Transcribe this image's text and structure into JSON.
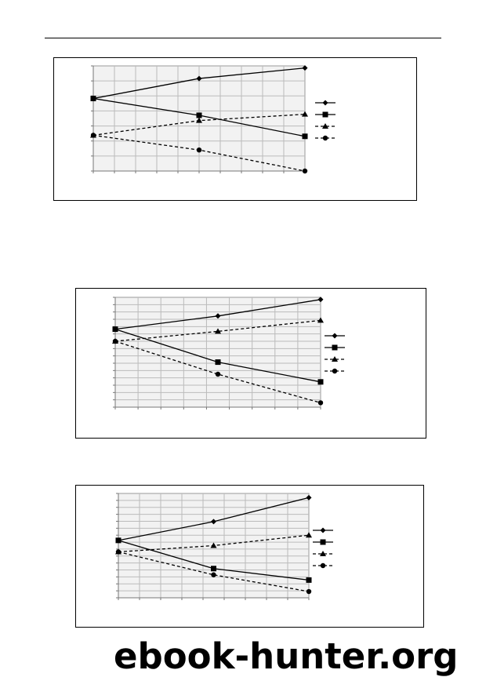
{
  "watermark": {
    "text": "ebook-hunter.org"
  },
  "chart_data": [
    {
      "type": "line",
      "x": [
        0,
        1,
        2
      ],
      "ylim": [
        0,
        10
      ],
      "grid": true,
      "legend_position": "right",
      "series": [
        {
          "marker": "diamond",
          "dash": "solid",
          "values": [
            6.9,
            8.8,
            9.8
          ]
        },
        {
          "marker": "square",
          "dash": "solid",
          "values": [
            6.9,
            5.3,
            3.3
          ]
        },
        {
          "marker": "triangle",
          "dash": "dashed",
          "values": [
            3.4,
            4.8,
            5.4
          ]
        },
        {
          "marker": "circle",
          "dash": "dashed",
          "values": [
            3.4,
            2.0,
            0.0
          ]
        }
      ]
    },
    {
      "type": "line",
      "x": [
        0,
        1,
        2
      ],
      "ylim": [
        0,
        10
      ],
      "grid": true,
      "legend_position": "right",
      "series": [
        {
          "marker": "diamond",
          "dash": "solid",
          "values": [
            7.1,
            8.3,
            9.8
          ]
        },
        {
          "marker": "square",
          "dash": "solid",
          "values": [
            7.1,
            4.1,
            2.3
          ]
        },
        {
          "marker": "triangle",
          "dash": "dashed",
          "values": [
            6.0,
            6.9,
            7.9
          ]
        },
        {
          "marker": "circle",
          "dash": "dashed",
          "values": [
            6.0,
            3.0,
            0.4
          ]
        }
      ]
    },
    {
      "type": "line",
      "x": [
        0,
        1,
        2
      ],
      "ylim": [
        0,
        10
      ],
      "grid": true,
      "legend_position": "right",
      "series": [
        {
          "marker": "diamond",
          "dash": "solid",
          "values": [
            5.5,
            7.3,
            9.6
          ]
        },
        {
          "marker": "square",
          "dash": "solid",
          "values": [
            5.5,
            2.8,
            1.7
          ]
        },
        {
          "marker": "triangle",
          "dash": "dashed",
          "values": [
            4.4,
            5.0,
            6.0
          ]
        },
        {
          "marker": "circle",
          "dash": "dashed",
          "values": [
            4.4,
            2.2,
            0.6
          ]
        }
      ]
    }
  ]
}
